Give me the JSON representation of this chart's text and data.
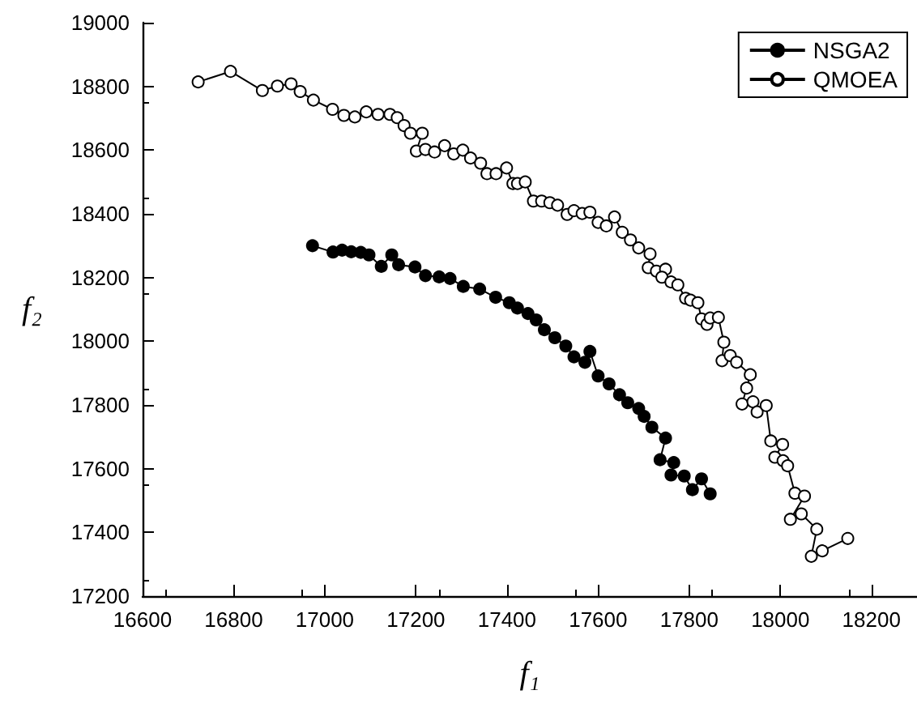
{
  "chart_data": {
    "type": "line",
    "xlabel": "f₁",
    "ylabel": "f₂",
    "xlim": [
      16600,
      18300
    ],
    "ylim": [
      17200,
      19000
    ],
    "xticks": [
      16600,
      16800,
      17000,
      17200,
      17400,
      17600,
      17800,
      18000,
      18200
    ],
    "yticks": [
      17200,
      17400,
      17600,
      17800,
      18000,
      18200,
      18400,
      18600,
      18800,
      19000
    ],
    "grid": false,
    "legend": "top right",
    "marker": "circle",
    "line_style": "solid",
    "series": [
      {
        "name": "NSGA2",
        "color": "#000000",
        "x": [
          16973,
          17018,
          17038,
          17058,
          17079,
          17097,
          17124,
          17147,
          17162,
          17198,
          17221,
          17251,
          17275,
          17304,
          17340,
          17375,
          17405,
          17423,
          17446,
          17464,
          17482,
          17505,
          17529,
          17547,
          17571,
          17582,
          17600,
          17624,
          17647,
          17665,
          17689,
          17701,
          17718,
          17748,
          17736,
          17766,
          17760,
          17789,
          17807,
          17827,
          17846
        ],
        "values": [
          18300,
          18280,
          18286,
          18281,
          18279,
          18271,
          18235,
          18271,
          18240,
          18233,
          18206,
          18202,
          18197,
          18172,
          18164,
          18138,
          18121,
          18104,
          18087,
          18067,
          18036,
          18011,
          17985,
          17951,
          17934,
          17968,
          17891,
          17866,
          17832,
          17807,
          17789,
          17764,
          17730,
          17696,
          17628,
          17619,
          17580,
          17577,
          17534,
          17568,
          17521
        ]
      },
      {
        "name": "QMOEA",
        "color": "#ffffff",
        "x": [
          16722,
          16793,
          16863,
          16896,
          16926,
          16946,
          16975,
          17017,
          17042,
          17066,
          17091,
          17117,
          17143,
          17159,
          17174,
          17188,
          17214,
          17201,
          17221,
          17241,
          17263,
          17283,
          17303,
          17320,
          17342,
          17356,
          17376,
          17399,
          17413,
          17423,
          17440,
          17458,
          17476,
          17494,
          17511,
          17532,
          17547,
          17565,
          17582,
          17600,
          17618,
          17636,
          17653,
          17671,
          17689,
          17714,
          17710,
          17728,
          17748,
          17740,
          17760,
          17775,
          17792,
          17803,
          17819,
          17827,
          17839,
          17846,
          17864,
          17876,
          17872,
          17890,
          17904,
          17934,
          17926,
          17916,
          17940,
          17949,
          17969,
          17979,
          18005,
          17988,
          18006,
          18016,
          18032,
          18053,
          18022,
          18046,
          18080,
          18068,
          18092,
          18148
        ],
        "values": [
          18814,
          18847,
          18787,
          18801,
          18808,
          18784,
          18757,
          18728,
          18709,
          18704,
          18720,
          18712,
          18712,
          18702,
          18677,
          18653,
          18653,
          18597,
          18602,
          18594,
          18614,
          18588,
          18600,
          18575,
          18559,
          18526,
          18526,
          18544,
          18495,
          18495,
          18500,
          18440,
          18440,
          18435,
          18427,
          18398,
          18410,
          18401,
          18405,
          18373,
          18362,
          18390,
          18342,
          18318,
          18293,
          18274,
          18231,
          18220,
          18226,
          18201,
          18186,
          18177,
          18135,
          18129,
          18121,
          18070,
          18053,
          18073,
          18075,
          17997,
          17939,
          17955,
          17934,
          17895,
          17853,
          17803,
          17810,
          17778,
          17798,
          17687,
          17676,
          17636,
          17625,
          17609,
          17523,
          17514,
          17441,
          17458,
          17410,
          17325,
          17342,
          17381
        ]
      }
    ]
  }
}
